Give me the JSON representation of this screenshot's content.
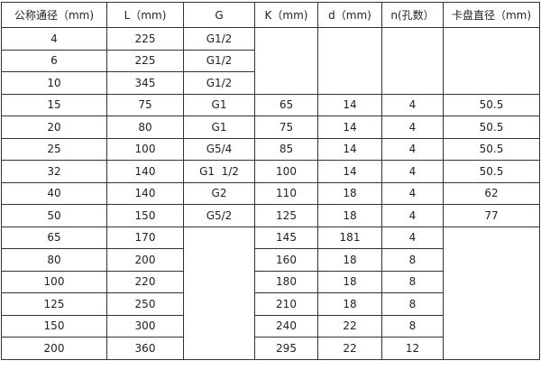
{
  "headers": [
    "公称通径（mm)",
    "L（mm)",
    "G",
    "K（mm)",
    "d（mm)",
    "n(孔数）",
    "卡盘直径（mm)"
  ],
  "rows": [
    [
      "4",
      "225",
      "G1/2",
      "",
      "",
      "",
      ""
    ],
    [
      "6",
      "225",
      "G1/2",
      null,
      null,
      null,
      null
    ],
    [
      "10",
      "345",
      "G1/2",
      null,
      null,
      null,
      null
    ],
    [
      "15",
      "75",
      "G1",
      "65",
      "14",
      "4",
      "50.5"
    ],
    [
      "20",
      "80",
      "G1",
      "75",
      "14",
      "4",
      "50.5"
    ],
    [
      "25",
      "100",
      "G5/4",
      "85",
      "14",
      "4",
      "50.5"
    ],
    [
      "32",
      "140",
      "G1  1/2",
      "100",
      "14",
      "4",
      "50.5"
    ],
    [
      "40",
      "140",
      "G2",
      "110",
      "18",
      "4",
      "62"
    ],
    [
      "50",
      "150",
      "G5/2",
      "125",
      "18",
      "4",
      "77"
    ],
    [
      "65",
      "170",
      "",
      "145",
      "181",
      "4",
      ""
    ],
    [
      "80",
      "200",
      null,
      "160",
      "18",
      "8",
      null
    ],
    [
      "100",
      "220",
      null,
      "180",
      "18",
      "8",
      null
    ],
    [
      "125",
      "250",
      null,
      "210",
      "18",
      "8",
      null
    ],
    [
      "150",
      "300",
      null,
      "240",
      "22",
      "8",
      null
    ],
    [
      "200",
      "360",
      null,
      "295",
      "22",
      "12",
      null
    ]
  ]
}
